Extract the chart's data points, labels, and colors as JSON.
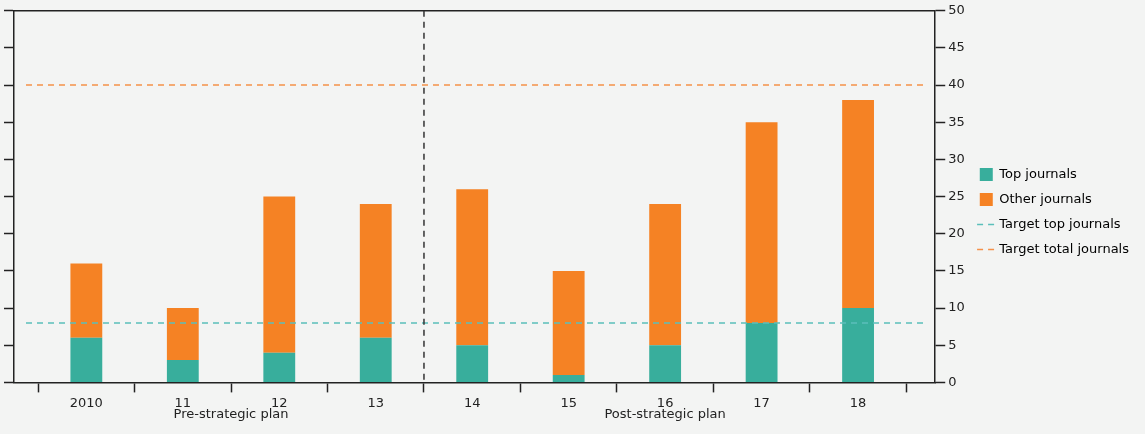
{
  "chart_data": {
    "type": "bar",
    "stacked": true,
    "x": [
      2010,
      2011,
      2012,
      2013,
      2014,
      2015,
      2016,
      2017,
      2018
    ],
    "series": [
      {
        "name": "Top journals",
        "color": "#38ae9c",
        "values": [
          6,
          3,
          4,
          6,
          5,
          1,
          5,
          8,
          10
        ]
      },
      {
        "name": "Other journals",
        "color": "#f58224",
        "values": [
          10,
          7,
          21,
          18,
          21,
          14,
          19,
          27,
          28
        ]
      }
    ],
    "xlim": [
      2009.25,
      2018.8
    ],
    "xticks": [
      {
        "value": 2009.5,
        "label": null
      },
      2010,
      {
        "value": 2010.5,
        "label": null
      },
      {
        "value": 2011,
        "label": "11"
      },
      {
        "value": 2011.5,
        "label": null
      },
      {
        "value": 2012,
        "label": "12"
      },
      {
        "value": 2012.5,
        "label": null
      },
      {
        "value": 2013,
        "label": "13"
      },
      {
        "value": 2013.5,
        "label": null
      },
      {
        "value": 2014,
        "label": "14"
      },
      {
        "value": 2014.5,
        "label": null
      },
      {
        "value": 2015,
        "label": "15"
      },
      {
        "value": 2015.5,
        "label": null
      },
      {
        "value": 2016,
        "label": "16"
      },
      {
        "value": 2016.5,
        "label": null
      },
      {
        "value": 2017,
        "label": "17"
      },
      {
        "value": 2017.5,
        "label": null
      },
      {
        "value": 2018,
        "label": "18"
      },
      {
        "value": 2018.5,
        "label": null
      }
    ],
    "ylim": [
      0,
      50
    ],
    "yticks": [
      0,
      5,
      10,
      15,
      20,
      25,
      30,
      35,
      40,
      45,
      50
    ],
    "ref_lines": [
      {
        "axis": "y",
        "value": 8,
        "label": "Target top journals",
        "color": "#5bbfba",
        "line_style": "dashed"
      },
      {
        "axis": "y",
        "value": 40,
        "label": "Target total journals",
        "color": "#f5914a",
        "line_style": "dashed"
      },
      {
        "axis": "x",
        "value": 2013.5,
        "color": "#333333",
        "line_style": "dashed"
      }
    ],
    "annotations": [
      "Pre-strategic plan",
      "Post-strategic plan"
    ],
    "legend": "right",
    "grid": false
  }
}
